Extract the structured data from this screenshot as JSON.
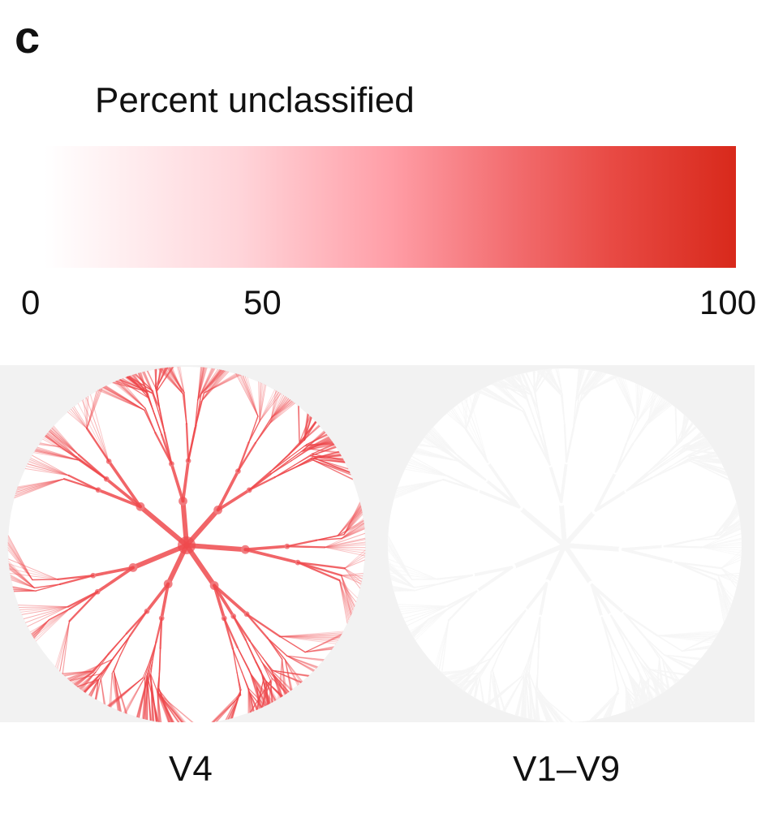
{
  "figure": {
    "panel_letter": "c",
    "legend": {
      "title": "Percent unclassified",
      "ticks": [
        "0",
        "50",
        "100"
      ],
      "scale": {
        "min": 0,
        "max": 100
      },
      "colors": {
        "low": "#ffffff",
        "mid": "#ff9ea7",
        "high": "#d8291b"
      }
    },
    "trees": [
      {
        "caption": "V4",
        "color": "#ee4a4e",
        "node_color": "#f07a7e",
        "intensity": "high"
      },
      {
        "caption": "V1–V9",
        "color": "#ffffff",
        "node_color": "#ffffff",
        "intensity": "low"
      }
    ],
    "panel_background": "#f2f2f2"
  }
}
